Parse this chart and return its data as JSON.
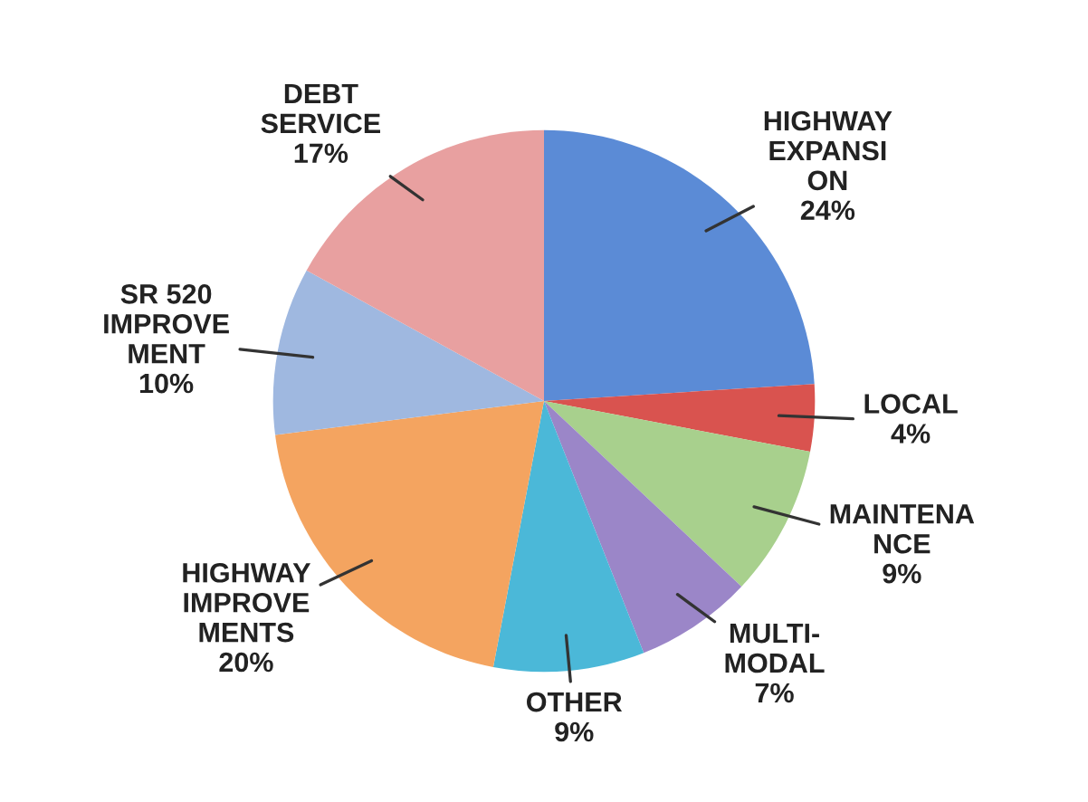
{
  "chart_data": {
    "type": "pie",
    "categories": [
      "HIGHWAY\nEXPANSI\nON",
      "LOCAL",
      "MAINTENA\nNCE",
      "MULTI-\nMODAL",
      "OTHER",
      "HIGHWAY\nIMPROVE\nMENTS",
      "SR 520\nIMPROVE\nMENT",
      "DEBT\nSERVICE"
    ],
    "values": [
      24,
      4,
      9,
      7,
      9,
      20,
      10,
      17
    ],
    "value_labels": [
      "24%",
      "4%",
      "9%",
      "7%",
      "9%",
      "20%",
      "10%",
      "17%"
    ],
    "colors": [
      "#5b8bd6",
      "#d9534f",
      "#a8d08d",
      "#9b86c8",
      "#4bb8d8",
      "#f4a460",
      "#9fb8e0",
      "#e8a0a0"
    ]
  }
}
